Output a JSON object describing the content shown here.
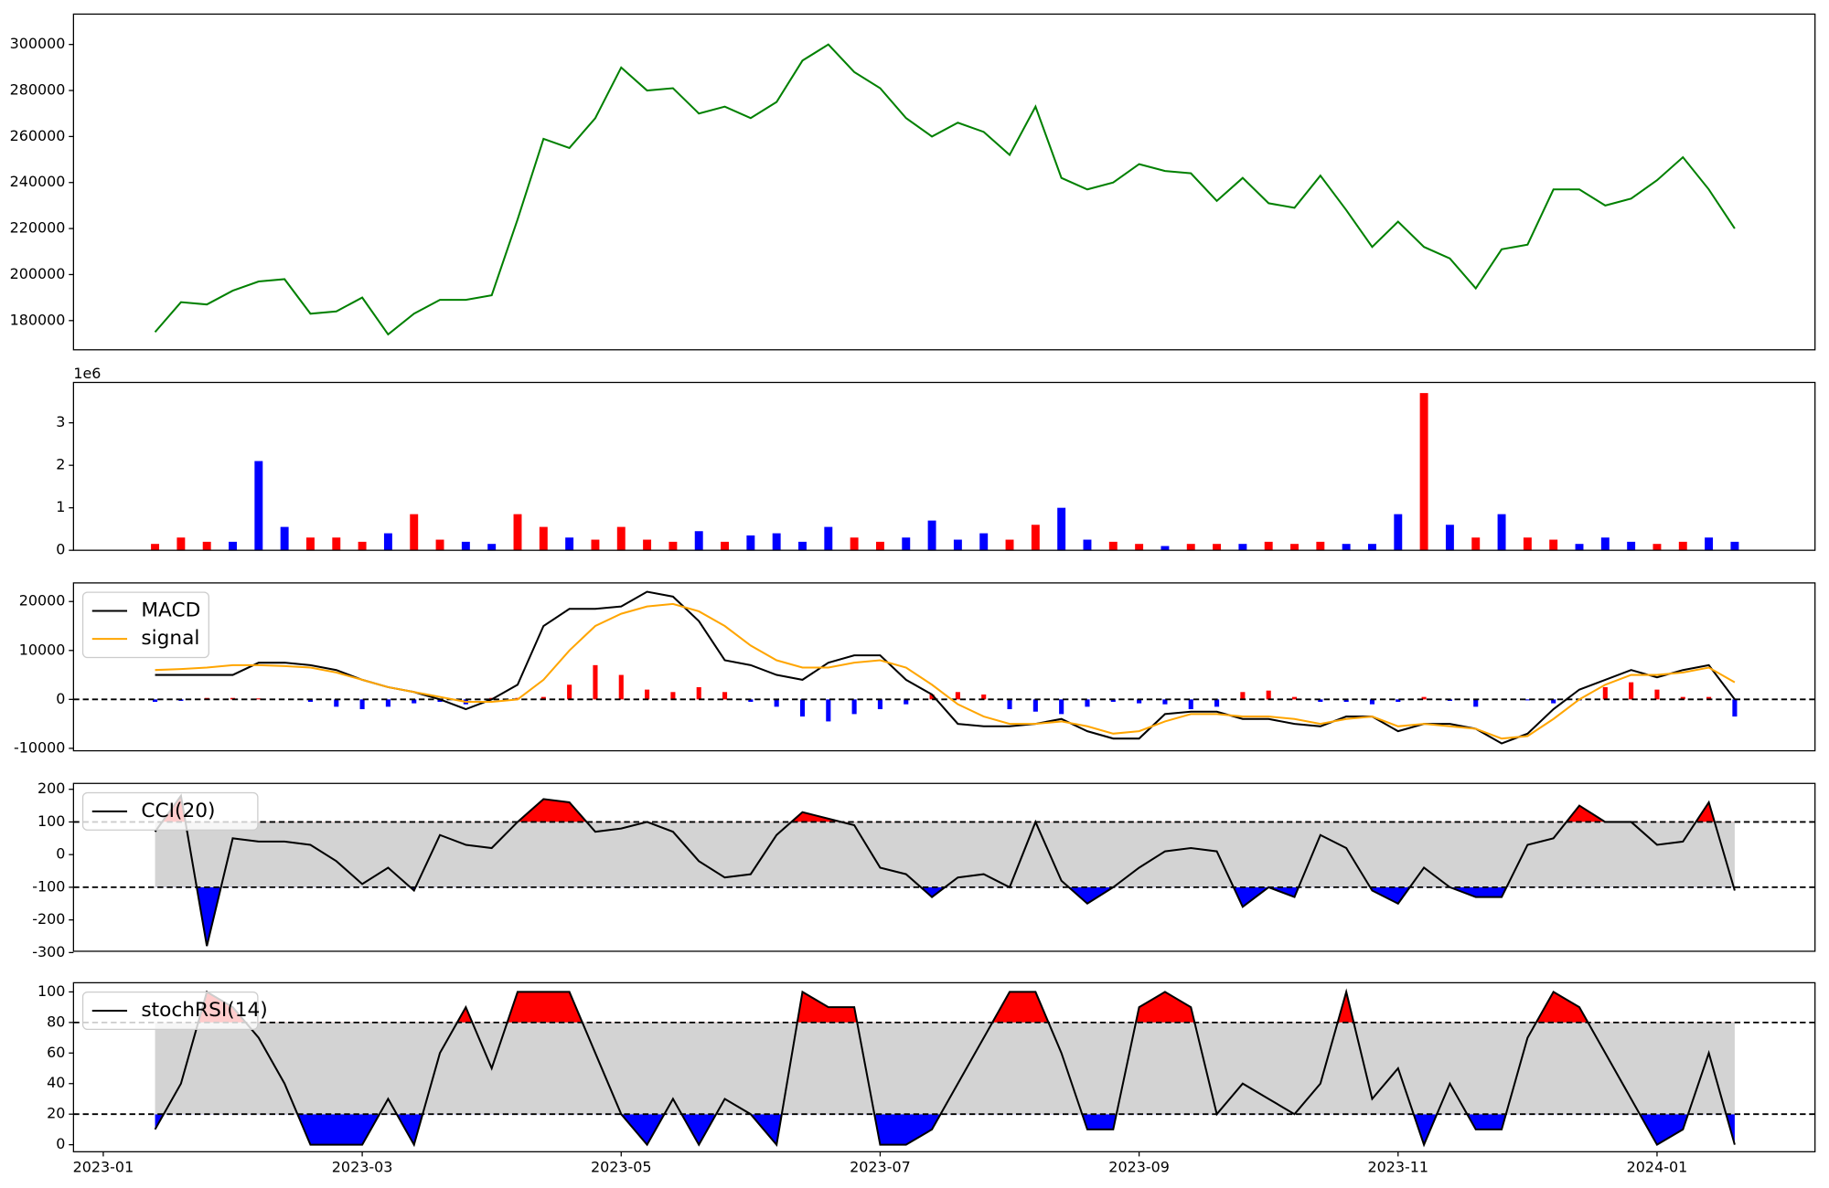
{
  "chart_data": [
    {
      "type": "line",
      "color": "#008000",
      "x": [
        0.4,
        0.6,
        0.8,
        1.0,
        1.2,
        1.4,
        1.6,
        1.8,
        2.0,
        2.2,
        2.4,
        2.6,
        2.8,
        3.0,
        3.2,
        3.4,
        3.6,
        3.8,
        4.0,
        4.2,
        4.4,
        4.6,
        4.8,
        5.0,
        5.2,
        5.4,
        5.6,
        5.8,
        6.0,
        6.2,
        6.4,
        6.6,
        6.8,
        7.0,
        7.2,
        7.4,
        7.6,
        7.8,
        8.0,
        8.2,
        8.4,
        8.6,
        8.8,
        9.0,
        9.2,
        9.4,
        9.6,
        9.8,
        10.0,
        10.2,
        10.4,
        10.6,
        10.8,
        11.0,
        11.2,
        11.4,
        11.6,
        11.8,
        12.0,
        12.2,
        12.4,
        12.6
      ],
      "values": [
        175000,
        188000,
        187000,
        193000,
        197000,
        198000,
        183000,
        184000,
        190000,
        174000,
        183000,
        189000,
        189000,
        191000,
        224000,
        259000,
        255000,
        268000,
        290000,
        280000,
        281000,
        270000,
        273000,
        268000,
        275000,
        293000,
        300000,
        288000,
        281000,
        268000,
        260000,
        266000,
        262000,
        252000,
        273000,
        242000,
        237000,
        240000,
        248000,
        245000,
        244000,
        232000,
        242000,
        231000,
        229000,
        243000,
        228000,
        212000,
        223000,
        212000,
        207000,
        194000,
        211000,
        213000,
        237000,
        237000,
        230000,
        233000,
        241000,
        251000,
        237000,
        220000
      ],
      "xlim": [
        -0.23,
        13.22
      ],
      "ylim": [
        167300,
        313200
      ],
      "yticks": [
        180000,
        200000,
        220000,
        240000,
        260000,
        280000,
        300000
      ]
    },
    {
      "type": "bar",
      "offset_label": "1e6",
      "x": [
        0.4,
        0.6,
        0.8,
        1.0,
        1.2,
        1.4,
        1.6,
        1.8,
        2.0,
        2.2,
        2.4,
        2.6,
        2.8,
        3.0,
        3.2,
        3.4,
        3.6,
        3.8,
        4.0,
        4.2,
        4.4,
        4.6,
        4.8,
        5.0,
        5.2,
        5.4,
        5.6,
        5.8,
        6.0,
        6.2,
        6.4,
        6.6,
        6.8,
        7.0,
        7.2,
        7.4,
        7.6,
        7.8,
        8.0,
        8.2,
        8.4,
        8.6,
        8.8,
        9.0,
        9.2,
        9.4,
        9.6,
        9.8,
        10.0,
        10.2,
        10.4,
        10.6,
        10.8,
        11.0,
        11.2,
        11.4,
        11.6,
        11.8,
        12.0,
        12.2,
        12.4,
        12.6
      ],
      "values": [
        0.15,
        0.3,
        0.2,
        0.2,
        2.1,
        0.55,
        0.3,
        0.3,
        0.2,
        0.4,
        0.85,
        0.25,
        0.2,
        0.15,
        0.85,
        0.55,
        0.3,
        0.25,
        0.55,
        0.25,
        0.2,
        0.45,
        0.2,
        0.35,
        0.4,
        0.2,
        0.55,
        0.3,
        0.2,
        0.3,
        0.7,
        0.25,
        0.4,
        0.25,
        0.6,
        1.0,
        0.25,
        0.2,
        0.15,
        0.1,
        0.15,
        0.15,
        0.15,
        0.2,
        0.15,
        0.2,
        0.15,
        0.15,
        0.85,
        3.7,
        0.6,
        0.3,
        0.85,
        0.3,
        0.25,
        0.15,
        0.3,
        0.2,
        0.15,
        0.2,
        0.3,
        0.2
      ],
      "colors": [
        "#ff0000",
        "#ff0000",
        "#ff0000",
        "#0000ff",
        "#0000ff",
        "#0000ff",
        "#ff0000",
        "#ff0000",
        "#ff0000",
        "#0000ff",
        "#ff0000",
        "#ff0000",
        "#0000ff",
        "#0000ff",
        "#ff0000",
        "#ff0000",
        "#0000ff",
        "#ff0000",
        "#ff0000",
        "#ff0000",
        "#ff0000",
        "#0000ff",
        "#ff0000",
        "#0000ff",
        "#0000ff",
        "#0000ff",
        "#0000ff",
        "#ff0000",
        "#ff0000",
        "#0000ff",
        "#0000ff",
        "#0000ff",
        "#0000ff",
        "#ff0000",
        "#ff0000",
        "#0000ff",
        "#0000ff",
        "#ff0000",
        "#ff0000",
        "#0000ff",
        "#ff0000",
        "#ff0000",
        "#0000ff",
        "#ff0000",
        "#ff0000",
        "#ff0000",
        "#0000ff",
        "#0000ff",
        "#0000ff",
        "#ff0000",
        "#0000ff",
        "#ff0000",
        "#0000ff",
        "#ff0000",
        "#ff0000",
        "#0000ff",
        "#0000ff",
        "#0000ff",
        "#ff0000",
        "#ff0000",
        "#0000ff",
        "#0000ff"
      ],
      "xlim": [
        -0.23,
        13.22
      ],
      "ylim": [
        0,
        3.95
      ],
      "yticks": [
        0,
        1,
        2,
        3
      ]
    },
    {
      "type": "line",
      "legend": "upper left",
      "reference_lines": [
        0
      ],
      "x": [
        0.4,
        0.6,
        0.8,
        1.0,
        1.2,
        1.4,
        1.6,
        1.8,
        2.0,
        2.2,
        2.4,
        2.6,
        2.8,
        3.0,
        3.2,
        3.4,
        3.6,
        3.8,
        4.0,
        4.2,
        4.4,
        4.6,
        4.8,
        5.0,
        5.2,
        5.4,
        5.6,
        5.8,
        6.0,
        6.2,
        6.4,
        6.6,
        6.8,
        7.0,
        7.2,
        7.4,
        7.6,
        7.8,
        8.0,
        8.2,
        8.4,
        8.6,
        8.8,
        9.0,
        9.2,
        9.4,
        9.6,
        9.8,
        10.0,
        10.2,
        10.4,
        10.6,
        10.8,
        11.0,
        11.2,
        11.4,
        11.6,
        11.8,
        12.0,
        12.2,
        12.4,
        12.6
      ],
      "series": [
        {
          "name": "MACD",
          "color": "#000000",
          "values": [
            5000,
            5000,
            5000,
            5000,
            7500,
            7500,
            7000,
            6000,
            4000,
            2500,
            1500,
            0,
            -2000,
            0,
            3000,
            15000,
            18500,
            18500,
            19000,
            22000,
            21000,
            16000,
            8000,
            7000,
            5000,
            4000,
            7500,
            9000,
            9000,
            4000,
            1000,
            -5000,
            -5500,
            -5500,
            -5000,
            -4000,
            -6500,
            -8000,
            -8000,
            -3000,
            -2500,
            -2500,
            -4000,
            -4000,
            -5000,
            -5500,
            -3500,
            -3500,
            -6500,
            -5000,
            -5000,
            -6000,
            -9000,
            -7000,
            -2000,
            2000,
            4000,
            6000,
            4500,
            6000,
            7000,
            0
          ]
        },
        {
          "name": "signal",
          "color": "#ffa500",
          "values": [
            6000,
            6200,
            6500,
            7000,
            7000,
            6800,
            6500,
            5500,
            4000,
            2500,
            1500,
            500,
            -500,
            -500,
            0,
            4000,
            10000,
            15000,
            17500,
            19000,
            19500,
            18000,
            15000,
            11000,
            8000,
            6500,
            6500,
            7500,
            8000,
            6500,
            3000,
            -1000,
            -3500,
            -5000,
            -5000,
            -4500,
            -5500,
            -7000,
            -6500,
            -4500,
            -3000,
            -3000,
            -3500,
            -3500,
            -4000,
            -5000,
            -4000,
            -3500,
            -5500,
            -5000,
            -5500,
            -6000,
            -8000,
            -7500,
            -4000,
            0,
            3000,
            5000,
            5000,
            5500,
            6500,
            3500
          ]
        }
      ],
      "histogram": {
        "positive_color": "#ff0000",
        "negative_color": "#0000ff",
        "values": [
          -500,
          -300,
          300,
          300,
          200,
          0,
          -500,
          -1500,
          -2000,
          -1500,
          -800,
          -500,
          -1000,
          300,
          300,
          500,
          3000,
          7000,
          5000,
          2000,
          1500,
          2500,
          1500,
          -500,
          -1500,
          -3500,
          -4500,
          -3000,
          -2000,
          -1000,
          1000,
          1500,
          1000,
          -2000,
          -2500,
          -3000,
          -1500,
          -500,
          -800,
          -1000,
          -2000,
          -1500,
          1500,
          1800,
          500,
          -500,
          -500,
          -1000,
          -500,
          500,
          -300,
          -1500,
          0,
          -200,
          -800,
          -200,
          2500,
          3500,
          2000,
          500,
          500,
          -3500
        ]
      },
      "xlim": [
        -0.23,
        13.22
      ],
      "ylim": [
        -10500,
        23800
      ],
      "yticks": [
        -10000,
        0,
        10000,
        20000
      ]
    },
    {
      "type": "line",
      "legend": "upper left",
      "reference_lines": [
        -100,
        100
      ],
      "band_color": "#d3d3d3",
      "above_color": "#ff0000",
      "below_color": "#0000ff",
      "x": [
        0.4,
        0.6,
        0.8,
        1.0,
        1.2,
        1.4,
        1.6,
        1.8,
        2.0,
        2.2,
        2.4,
        2.6,
        2.8,
        3.0,
        3.2,
        3.4,
        3.6,
        3.8,
        4.0,
        4.2,
        4.4,
        4.6,
        4.8,
        5.0,
        5.2,
        5.4,
        5.6,
        5.8,
        6.0,
        6.2,
        6.4,
        6.6,
        6.8,
        7.0,
        7.2,
        7.4,
        7.6,
        7.8,
        8.0,
        8.2,
        8.4,
        8.6,
        8.8,
        9.0,
        9.2,
        9.4,
        9.6,
        9.8,
        10.0,
        10.2,
        10.4,
        10.6,
        10.8,
        11.0,
        11.2,
        11.4,
        11.6,
        11.8,
        12.0,
        12.2,
        12.4,
        12.6
      ],
      "series": [
        {
          "name": "CCI(20)",
          "color": "#000000",
          "values": [
            70,
            180,
            -280,
            50,
            40,
            40,
            30,
            -20,
            -90,
            -40,
            -110,
            60,
            30,
            20,
            100,
            170,
            160,
            70,
            80,
            100,
            70,
            -20,
            -70,
            -60,
            60,
            130,
            110,
            90,
            -40,
            -60,
            -130,
            -70,
            -60,
            -100,
            100,
            -80,
            -150,
            -100,
            -40,
            10,
            20,
            10,
            -160,
            -100,
            -130,
            60,
            20,
            -110,
            -150,
            -40,
            -100,
            -130,
            -130,
            30,
            50,
            150,
            100,
            100,
            30,
            40,
            160,
            -110
          ]
        }
      ],
      "xlim": [
        -0.23,
        13.22
      ],
      "ylim": [
        -296,
        218
      ],
      "yticks": [
        -300,
        -200,
        -100,
        0,
        100,
        200
      ]
    },
    {
      "type": "line",
      "legend": "upper left",
      "reference_lines": [
        20,
        80
      ],
      "band_color": "#d3d3d3",
      "above_color": "#ff0000",
      "below_color": "#0000ff",
      "x": [
        0.4,
        0.6,
        0.8,
        1.0,
        1.2,
        1.4,
        1.6,
        1.8,
        2.0,
        2.2,
        2.4,
        2.6,
        2.8,
        3.0,
        3.2,
        3.4,
        3.6,
        3.8,
        4.0,
        4.2,
        4.4,
        4.6,
        4.8,
        5.0,
        5.2,
        5.4,
        5.6,
        5.8,
        6.0,
        6.2,
        6.4,
        6.6,
        6.8,
        7.0,
        7.2,
        7.4,
        7.6,
        7.8,
        8.0,
        8.2,
        8.4,
        8.6,
        8.8,
        9.0,
        9.2,
        9.4,
        9.6,
        9.8,
        10.0,
        10.2,
        10.4,
        10.6,
        10.8,
        11.0,
        11.2,
        11.4,
        11.6,
        11.8,
        12.0,
        12.2,
        12.4,
        12.6
      ],
      "series": [
        {
          "name": "stochRSI(14)",
          "color": "#000000",
          "values": [
            10,
            40,
            100,
            90,
            70,
            40,
            0,
            0,
            0,
            30,
            0,
            60,
            90,
            50,
            100,
            100,
            100,
            60,
            20,
            0,
            30,
            0,
            30,
            20,
            0,
            100,
            90,
            90,
            0,
            0,
            10,
            40,
            70,
            100,
            100,
            60,
            10,
            10,
            90,
            100,
            90,
            20,
            40,
            30,
            20,
            40,
            100,
            30,
            50,
            0,
            40,
            10,
            10,
            70,
            100,
            90,
            60,
            30,
            0,
            10,
            60,
            0
          ]
        }
      ],
      "xlim": [
        -0.23,
        13.22
      ],
      "ylim": [
        -4.6,
        106
      ],
      "yticks": [
        0,
        20,
        40,
        60,
        80,
        100
      ],
      "xticks": [
        {
          "value": 0,
          "label": "2023-01"
        },
        {
          "value": 2,
          "label": "2023-03"
        },
        {
          "value": 4,
          "label": "2023-05"
        },
        {
          "value": 6,
          "label": "2023-07"
        },
        {
          "value": 8,
          "label": "2023-09"
        },
        {
          "value": 10,
          "label": "2023-11"
        },
        {
          "value": 12,
          "label": "2024-01"
        }
      ]
    }
  ]
}
